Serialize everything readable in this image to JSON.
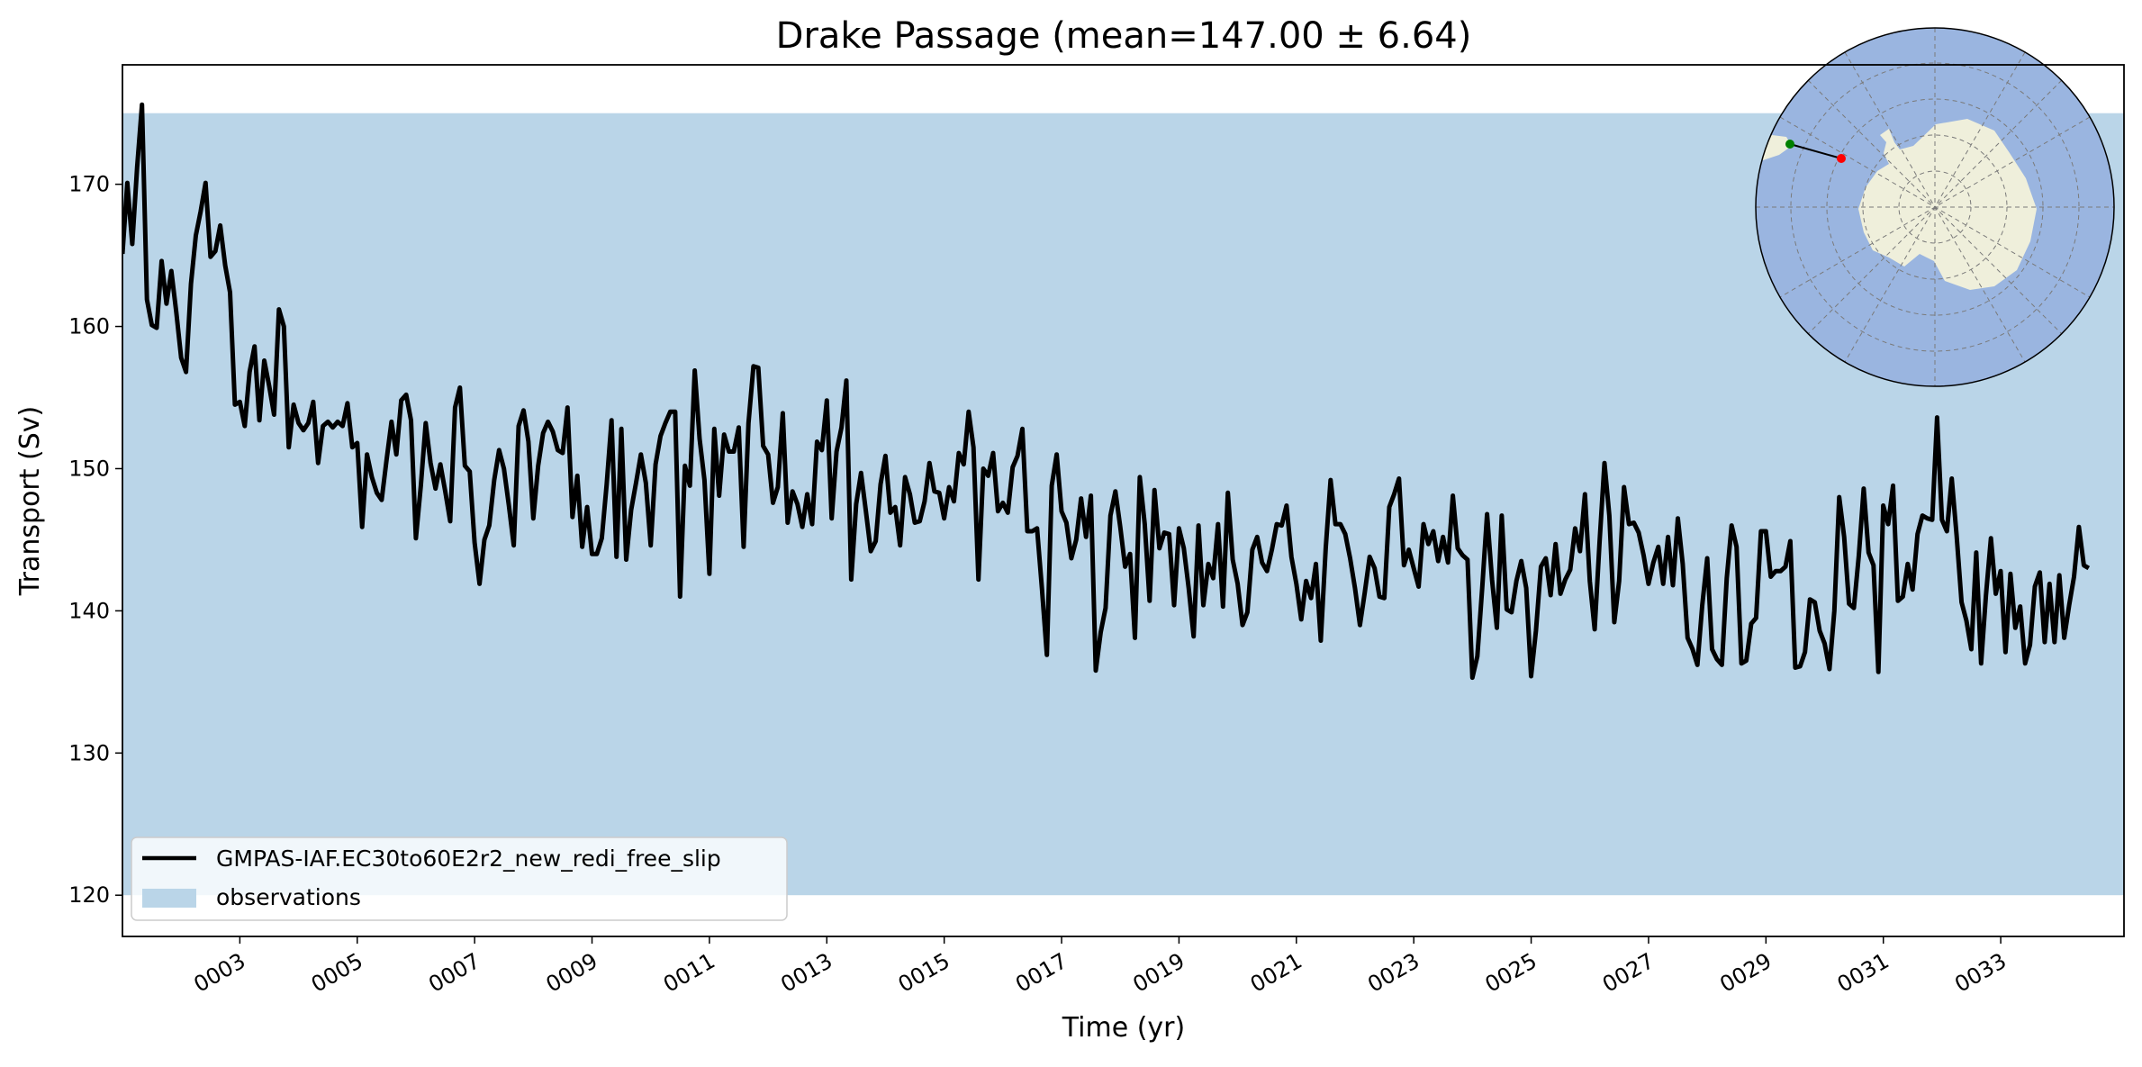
{
  "chart_data": {
    "type": "line",
    "title": "Drake Passage (mean=147.00 ± 6.64)",
    "xlabel": "Time (yr)",
    "ylabel": "Transport (Sv)",
    "xlim": [
      1,
      35.1
    ],
    "ylim": [
      117.1,
      178.4
    ],
    "xticks": [
      3,
      5,
      7,
      9,
      11,
      13,
      15,
      17,
      19,
      21,
      23,
      25,
      27,
      29,
      31,
      33
    ],
    "xtick_labels": [
      "0003",
      "0005",
      "0007",
      "0009",
      "0011",
      "0013",
      "0015",
      "0017",
      "0019",
      "0021",
      "0023",
      "0025",
      "0027",
      "0029",
      "0031",
      "0033"
    ],
    "yticks": [
      120,
      130,
      140,
      150,
      160,
      170
    ],
    "ytick_labels": [
      "120",
      "130",
      "140",
      "150",
      "160",
      "170"
    ],
    "grid": false,
    "legend_position": "lower-left",
    "observations_band": {
      "name": "observations",
      "low": 120,
      "high": 175,
      "color": "#bad5e8"
    },
    "series": [
      {
        "name": "GMPAS-IAF.EC30to60E2r2_new_redi_free_slip",
        "color": "#000000",
        "x_start": 1.0,
        "x_step": 0.08333,
        "values": [
          165.1,
          170.1,
          165.8,
          171.2,
          175.6,
          161.9,
          160.1,
          159.9,
          164.6,
          161.6,
          163.9,
          161.0,
          157.8,
          156.8,
          163.0,
          166.4,
          168.1,
          170.1,
          164.9,
          165.3,
          167.1,
          164.3,
          162.4,
          154.5,
          154.7,
          153.0,
          156.8,
          158.6,
          153.4,
          157.6,
          155.8,
          153.8,
          161.2,
          160.0,
          151.5,
          154.5,
          153.2,
          152.7,
          153.2,
          154.7,
          150.4,
          153.0,
          153.3,
          152.9,
          153.3,
          153.0,
          154.6,
          151.5,
          151.8,
          145.9,
          151.0,
          149.4,
          148.3,
          147.8,
          150.6,
          153.3,
          151.0,
          154.8,
          155.2,
          153.4,
          145.1,
          148.8,
          153.2,
          150.4,
          148.6,
          150.3,
          148.4,
          146.3,
          154.3,
          155.7,
          150.2,
          149.8,
          144.8,
          141.9,
          145.0,
          146.0,
          149.2,
          151.3,
          150.0,
          147.4,
          144.6,
          153.0,
          154.1,
          151.9,
          146.5,
          150.2,
          152.5,
          153.3,
          152.6,
          151.3,
          151.1,
          154.3,
          146.6,
          149.5,
          144.5,
          147.3,
          144.0,
          144.0,
          145.1,
          148.9,
          153.4,
          143.8,
          152.8,
          143.6,
          147.1,
          149.0,
          151.0,
          149.0,
          144.6,
          150.3,
          152.3,
          153.2,
          154.0,
          154.0,
          141.0,
          150.2,
          148.8,
          156.9,
          152.1,
          149.2,
          142.6,
          152.8,
          148.1,
          152.4,
          151.2,
          151.2,
          152.9,
          144.5,
          153.2,
          157.2,
          157.1,
          151.6,
          151.0,
          147.6,
          148.7,
          153.9,
          146.2,
          148.4,
          147.5,
          145.9,
          148.2,
          146.1,
          151.9,
          151.3,
          154.8,
          146.5,
          151.2,
          152.9,
          156.2,
          142.2,
          147.5,
          149.7,
          147.0,
          144.2,
          144.9,
          148.9,
          150.9,
          146.9,
          147.3,
          144.6,
          149.4,
          148.2,
          146.2,
          146.3,
          147.7,
          150.4,
          148.4,
          148.3,
          146.5,
          148.7,
          147.7,
          151.1,
          150.3,
          154.0,
          151.5,
          142.2,
          150.0,
          149.5,
          151.1,
          147.0,
          147.6,
          146.9,
          150.1,
          150.9,
          152.8,
          145.6,
          145.6,
          145.8,
          141.5,
          136.9,
          148.8,
          151.0,
          147.0,
          146.2,
          143.7,
          145.0,
          147.9,
          145.2,
          148.1,
          135.8,
          138.5,
          140.2,
          146.7,
          148.4,
          145.9,
          143.1,
          144.0,
          138.1,
          149.4,
          146.1,
          140.7,
          148.5,
          144.4,
          145.5,
          145.4,
          140.4,
          145.8,
          144.4,
          141.6,
          138.2,
          146.0,
          140.4,
          143.3,
          142.3,
          146.1,
          140.3,
          148.3,
          143.6,
          141.9,
          139.0,
          139.9,
          144.3,
          145.2,
          143.4,
          142.8,
          144.3,
          146.1,
          146.0,
          147.4,
          143.8,
          141.9,
          139.4,
          142.1,
          140.9,
          143.3,
          137.9,
          144.4,
          149.2,
          146.1,
          146.1,
          145.4,
          143.7,
          141.6,
          139.0,
          141.3,
          143.8,
          143.0,
          141.0,
          140.9,
          147.3,
          148.2,
          149.3,
          143.2,
          144.3,
          143.0,
          141.7,
          146.1,
          144.7,
          145.6,
          143.5,
          145.2,
          143.4,
          148.1,
          144.4,
          143.9,
          143.6,
          135.3,
          136.8,
          141.6,
          146.8,
          142.2,
          138.8,
          146.7,
          140.1,
          139.9,
          142.1,
          143.5,
          141.6,
          135.4,
          138.6,
          143.1,
          143.7,
          141.1,
          144.7,
          141.2,
          142.2,
          142.9,
          145.8,
          144.2,
          148.2,
          142.1,
          138.7,
          144.9,
          150.4,
          146.7,
          139.2,
          142.1,
          148.7,
          146.1,
          146.2,
          145.5,
          143.9,
          141.9,
          143.4,
          144.5,
          141.9,
          145.2,
          141.8,
          146.5,
          143.3,
          138.1,
          137.3,
          136.2,
          140.4,
          143.7,
          137.3,
          136.6,
          136.2,
          142.3,
          146.0,
          144.5,
          136.3,
          136.5,
          139.1,
          139.5,
          145.6,
          145.6,
          142.4,
          142.8,
          142.8,
          143.1,
          144.9,
          136.0,
          136.1,
          137.1,
          140.8,
          140.6,
          138.6,
          137.7,
          135.9,
          140.0,
          148.0,
          145.2,
          140.5,
          140.2,
          143.9,
          148.6,
          144.1,
          143.2,
          135.7,
          147.4,
          146.1,
          148.8,
          140.7,
          141.0,
          143.3,
          141.5,
          145.4,
          146.7,
          146.5,
          146.4,
          153.6,
          146.4,
          145.6,
          149.3,
          145.3,
          140.6,
          139.3,
          137.3,
          144.1,
          136.3,
          141.1,
          145.1,
          141.2,
          142.8,
          137.1,
          142.6,
          138.8,
          140.3,
          136.3,
          137.6,
          141.7,
          142.7,
          137.8,
          141.9,
          137.8,
          142.5,
          138.1,
          140.4,
          142.4,
          145.9,
          143.2,
          143.0
        ]
      }
    ]
  },
  "inset_map": {
    "ocean_color": "#9ab5e0",
    "land_color": "#efefdb",
    "section_start_color": "#008000",
    "section_end_color": "#ff0000"
  }
}
